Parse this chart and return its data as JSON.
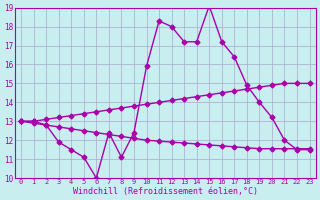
{
  "xlabel": "Windchill (Refroidissement éolien,°C)",
  "bg_color": "#c8eef0",
  "grid_color": "#aaaacc",
  "line_color": "#aa00aa",
  "xmin": 0,
  "xmax": 23,
  "ymin": 10,
  "ymax": 19,
  "xticks": [
    0,
    1,
    2,
    3,
    4,
    5,
    6,
    7,
    8,
    9,
    10,
    11,
    12,
    13,
    14,
    15,
    16,
    17,
    18,
    19,
    20,
    21,
    22,
    23
  ],
  "yticks": [
    10,
    11,
    12,
    13,
    14,
    15,
    16,
    17,
    18,
    19
  ],
  "line1_x": [
    0,
    1,
    2,
    3,
    4,
    5,
    6,
    7,
    8,
    9,
    10,
    11,
    12,
    13,
    14,
    15,
    16,
    17,
    18,
    19,
    20,
    21,
    22,
    23
  ],
  "line1_y": [
    13.0,
    13.0,
    12.8,
    11.9,
    11.5,
    11.1,
    10.0,
    12.4,
    11.1,
    12.4,
    15.9,
    18.3,
    18.0,
    17.2,
    17.2,
    19.1,
    17.2,
    16.4,
    14.9,
    14.0,
    13.2,
    12.0,
    11.5,
    11.5
  ],
  "line2_x": [
    0,
    1,
    2,
    3,
    4,
    5,
    6,
    7,
    8,
    9,
    10,
    11,
    12,
    13,
    14,
    15,
    16,
    17,
    18,
    19,
    20,
    21,
    22,
    23
  ],
  "line2_y": [
    13.0,
    13.0,
    13.1,
    13.2,
    13.3,
    13.4,
    13.5,
    13.6,
    13.7,
    13.8,
    13.9,
    14.0,
    14.1,
    14.2,
    14.3,
    14.4,
    14.5,
    14.6,
    14.7,
    14.8,
    14.9,
    15.0,
    15.0,
    15.0
  ],
  "line3_x": [
    0,
    1,
    2,
    3,
    4,
    5,
    6,
    7,
    8,
    9,
    10,
    11,
    12,
    13,
    14,
    15,
    16,
    17,
    18,
    19,
    20,
    21,
    22,
    23
  ],
  "line3_y": [
    13.0,
    12.9,
    12.8,
    12.7,
    12.6,
    12.5,
    12.4,
    12.3,
    12.2,
    12.1,
    12.0,
    11.95,
    11.9,
    11.85,
    11.8,
    11.75,
    11.7,
    11.65,
    11.6,
    11.55,
    11.55,
    11.55,
    11.55,
    11.55
  ]
}
